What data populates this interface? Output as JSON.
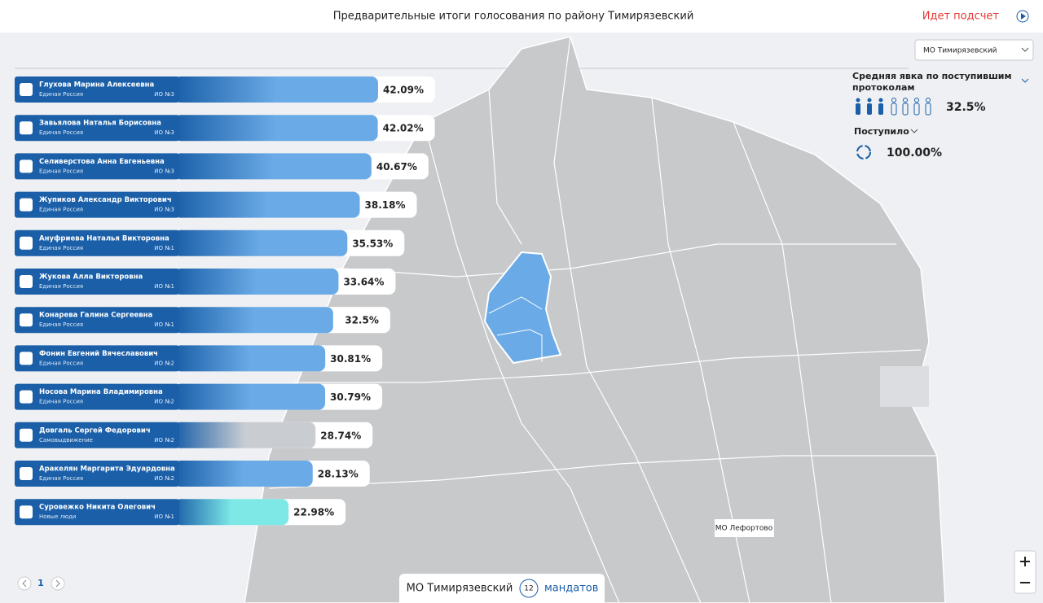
{
  "header": {
    "title": "Предварительные итоги голосования по району Тимирязевский",
    "status": "Идет подсчет"
  },
  "candidates": [
    {
      "name": "Глухова Марина Алексеевна",
      "party": "Единая Россия",
      "district": "ИО №3",
      "value": 42.09,
      "value_label": "42.09%",
      "color": "#6aaae6"
    },
    {
      "name": "Завьялова Наталья Борисовна",
      "party": "Единая Россия",
      "district": "ИО №3",
      "value": 42.02,
      "value_label": "42.02%",
      "color": "#6aaae6"
    },
    {
      "name": "Селиверстова Анна Евгеньевна",
      "party": "Единая Россия",
      "district": "ИО №3",
      "value": 40.67,
      "value_label": "40.67%",
      "color": "#6aaae6"
    },
    {
      "name": "Жупиков Александр Викторович",
      "party": "Единая Россия",
      "district": "ИО №3",
      "value": 38.18,
      "value_label": "38.18%",
      "color": "#6aaae6"
    },
    {
      "name": "Ануфриева Наталья Викторовна",
      "party": "Единая Россия",
      "district": "ИО №1",
      "value": 35.53,
      "value_label": "35.53%",
      "color": "#6aaae6"
    },
    {
      "name": "Жукова Алла Викторовна",
      "party": "Единая Россия",
      "district": "ИО №1",
      "value": 33.64,
      "value_label": "33.64%",
      "color": "#6aaae6"
    },
    {
      "name": "Конарева Галина Сергеевна",
      "party": "Единая Россия",
      "district": "ИО №1",
      "value": 32.5,
      "value_label": "32.5%",
      "color": "#6aaae6"
    },
    {
      "name": "Фонин Евгений Вячеславович",
      "party": "Единая Россия",
      "district": "ИО №2",
      "value": 30.81,
      "value_label": "30.81%",
      "color": "#6aaae6"
    },
    {
      "name": "Носова Марина Владимировна",
      "party": "Единая Россия",
      "district": "ИО №2",
      "value": 30.79,
      "value_label": "30.79%",
      "color": "#6aaae6"
    },
    {
      "name": "Довгаль Сергей Федорович",
      "party": "Самовыдвижение",
      "district": "ИО №2",
      "value": 28.74,
      "value_label": "28.74%",
      "color": "#c9cdd2"
    },
    {
      "name": "Аракелян Маргарита Эдуардовна",
      "party": "Единая Россия",
      "district": "ИО №2",
      "value": 28.13,
      "value_label": "28.13%",
      "color": "#6aaae6"
    },
    {
      "name": "Суровежко Никита Олегович",
      "party": "Новые люди",
      "district": "ИО №1",
      "value": 22.98,
      "value_label": "22.98%",
      "color": "#7de8e6"
    }
  ],
  "panel": {
    "dropdown": "МО Тимирязевский",
    "turnout_title": "Средняя явка по поступившим протоколам",
    "turnout": "32.5%",
    "received_title": "Поступило",
    "received": "100.00%"
  },
  "map": {
    "label": "МО Лефортово"
  },
  "footer": {
    "area": "МО Тимирязевский",
    "mandates": "12",
    "mandates_label": "мандатов",
    "page": "1"
  }
}
